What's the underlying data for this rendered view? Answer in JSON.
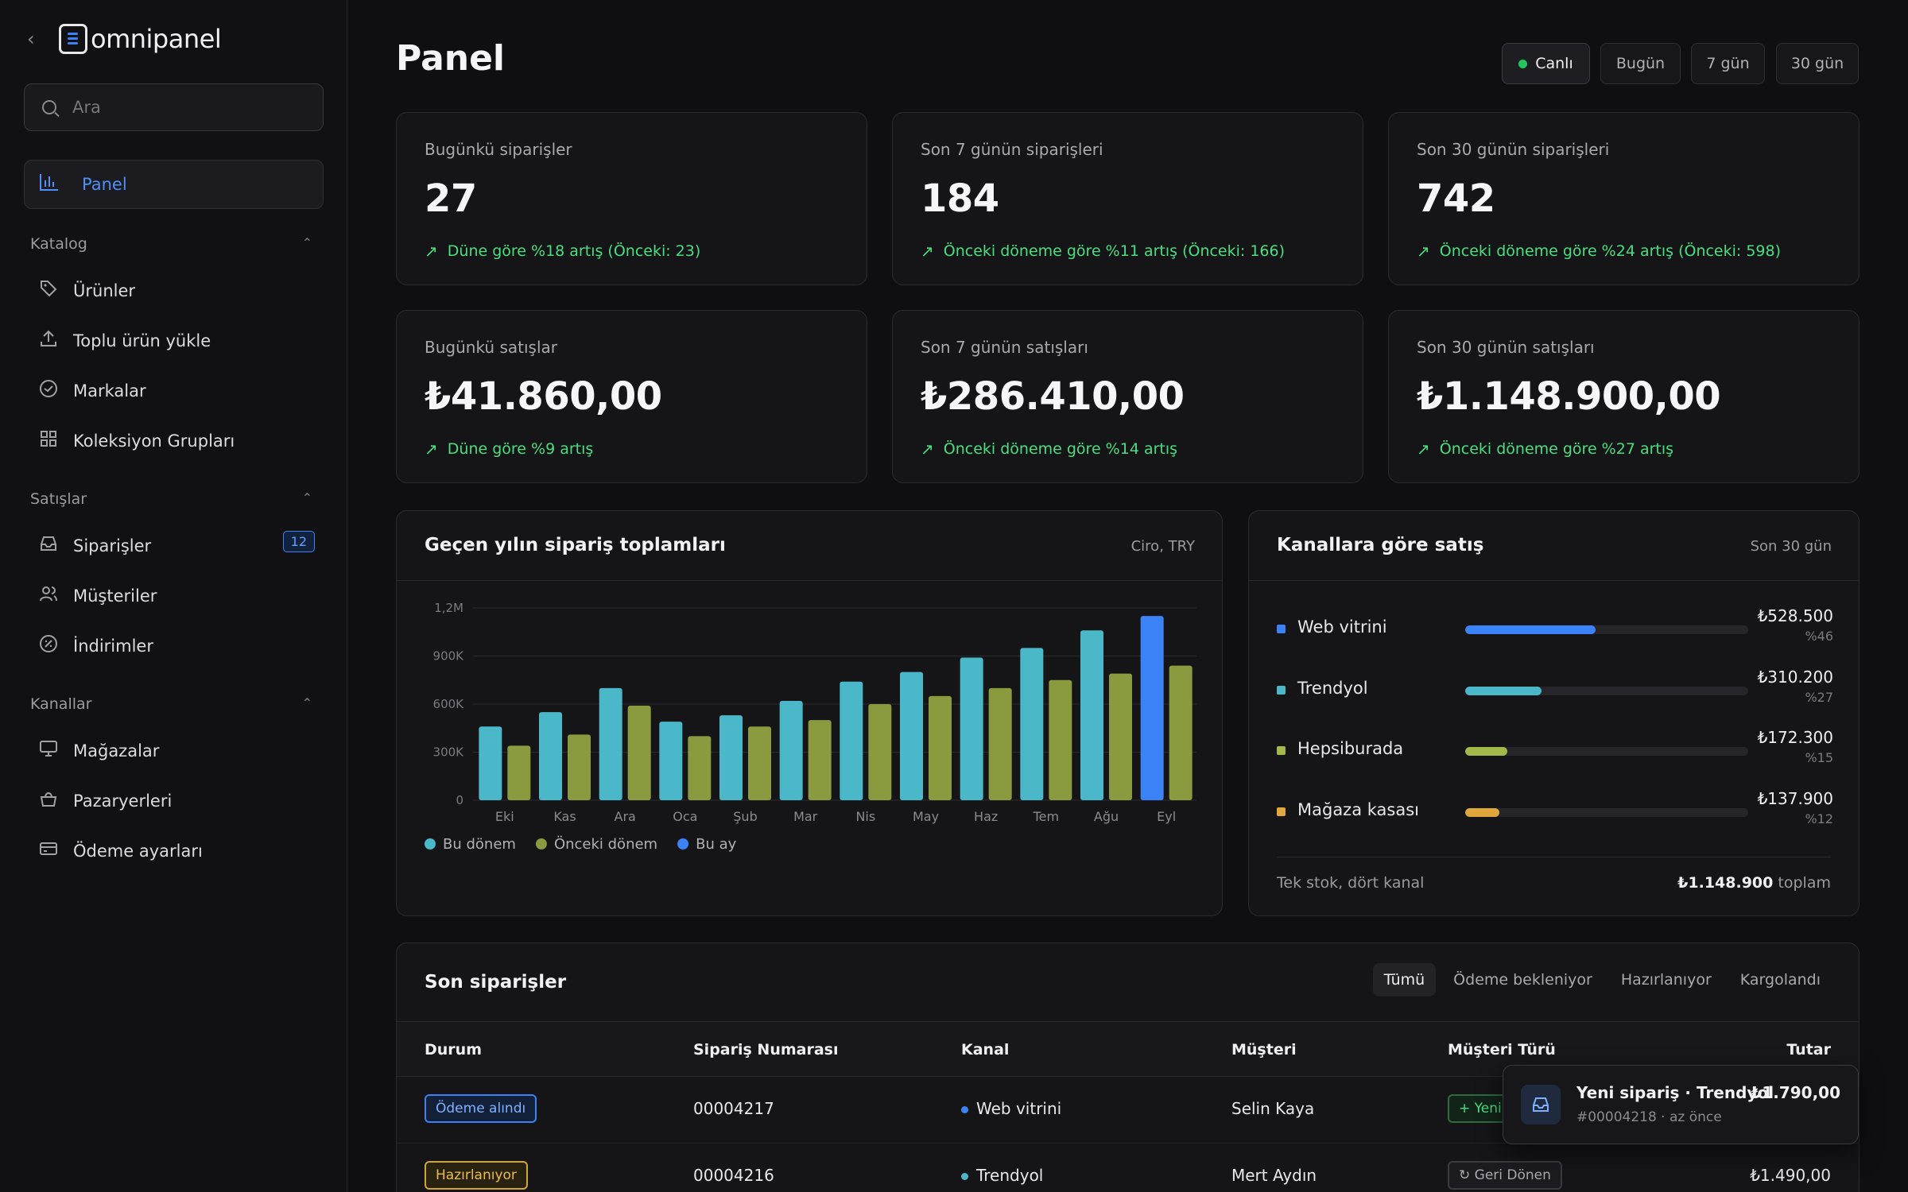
{
  "brand": {
    "name": "omnipanel"
  },
  "search": {
    "placeholder": "Ara"
  },
  "sidebar": {
    "active": {
      "label": "Panel",
      "icon": "bar-chart-icon"
    },
    "sections": [
      {
        "title": "Katalog",
        "items": [
          {
            "label": "Ürünler",
            "icon": "tag-icon"
          },
          {
            "label": "Toplu ürün yükle",
            "icon": "upload-icon"
          },
          {
            "label": "Markalar",
            "icon": "check-circle-icon"
          },
          {
            "label": "Koleksiyon Grupları",
            "icon": "grid-icon"
          }
        ]
      },
      {
        "title": "Satışlar",
        "items": [
          {
            "label": "Siparişler",
            "icon": "inbox-icon",
            "badge": "12"
          },
          {
            "label": "Müşteriler",
            "icon": "users-icon"
          },
          {
            "label": "İndirimler",
            "icon": "discount-icon"
          }
        ]
      },
      {
        "title": "Kanallar",
        "items": [
          {
            "label": "Mağazalar",
            "icon": "monitor-icon"
          },
          {
            "label": "Pazaryerleri",
            "icon": "basket-icon"
          },
          {
            "label": "Ödeme ayarları",
            "icon": "credit-card-icon"
          }
        ]
      }
    ]
  },
  "header": {
    "title": "Panel",
    "ranges": [
      "Canlı",
      "Bugün",
      "7 gün",
      "30 gün"
    ]
  },
  "kpis": [
    {
      "label": "Bugünkü siparişler",
      "value": "27",
      "delta": "Düne göre %18 artış (Önceki: 23)"
    },
    {
      "label": "Son 7 günün siparişleri",
      "value": "184",
      "delta": "Önceki döneme göre %11 artış (Önceki: 166)"
    },
    {
      "label": "Son 30 günün siparişleri",
      "value": "742",
      "delta": "Önceki döneme göre %24 artış (Önceki: 598)"
    },
    {
      "label": "Bugünkü satışlar",
      "value": "₺41.860,00",
      "delta": "Düne göre %9 artış"
    },
    {
      "label": "Son 7 günün satışları",
      "value": "₺286.410,00",
      "delta": "Önceki döneme göre %14 artış"
    },
    {
      "label": "Son 30 günün satışları",
      "value": "₺1.148.900,00",
      "delta": "Önceki döneme göre %27 artış"
    }
  ],
  "chart_panel": {
    "title": "Geçen yılın sipariş toplamları",
    "subtitle": "Ciro, TRY"
  },
  "chart_data": {
    "type": "bar",
    "categories": [
      "Eki",
      "Kas",
      "Ara",
      "Oca",
      "Şub",
      "Mar",
      "Nis",
      "May",
      "Haz",
      "Tem",
      "Ağu",
      "Eyl"
    ],
    "series": [
      {
        "name": "Bu dönem",
        "values": [
          460000,
          550000,
          700000,
          490000,
          530000,
          620000,
          740000,
          800000,
          890000,
          950000,
          1060000,
          1150000
        ],
        "color": "#4ab8c8"
      },
      {
        "name": "Önceki dönem",
        "values": [
          340000,
          410000,
          590000,
          400000,
          460000,
          500000,
          600000,
          650000,
          700000,
          750000,
          790000,
          840000
        ],
        "color": "#8a9a3e"
      }
    ],
    "highlight": {
      "name": "Bu ay",
      "index": 11,
      "color": "#3b82f6"
    },
    "yticks": [
      "0",
      "300K",
      "600K",
      "900K",
      "1,2M"
    ],
    "ylim": [
      0,
      1200000
    ],
    "grid": true,
    "legend_position": "bottom-left"
  },
  "channels": {
    "title": "Kanallara göre satış",
    "subtitle": "Son 30 gün",
    "rows": [
      {
        "name": "Web vitrini",
        "amount": "₺528.500",
        "pct": "%46",
        "share": 0.46,
        "color": "#3b82f6"
      },
      {
        "name": "Trendyol",
        "amount": "₺310.200",
        "pct": "%27",
        "share": 0.27,
        "color": "#4ab8c8"
      },
      {
        "name": "Hepsiburada",
        "amount": "₺172.300",
        "pct": "%15",
        "share": 0.15,
        "color": "#a3b84a"
      },
      {
        "name": "Mağaza kasası",
        "amount": "₺137.900",
        "pct": "%12",
        "share": 0.12,
        "color": "#e0a83c"
      }
    ],
    "footer_note": "Tek stok, dört kanal",
    "footer_total": "₺1.148.900",
    "footer_total_label": "toplam"
  },
  "orders": {
    "title": "Son siparişler",
    "tabs": [
      "Tümü",
      "Ödeme bekleniyor",
      "Hazırlanıyor",
      "Kargolandı"
    ],
    "columns": [
      "Durum",
      "Sipariş Numarası",
      "Kanal",
      "Müşteri",
      "Müşteri Türü",
      "Tutar"
    ],
    "rows": [
      {
        "status": "Ödeme alındı",
        "number": "00004217",
        "channel": "Web vitrini",
        "channel_color": "#3b82f6",
        "customer": "Selin Kaya",
        "type": "+ Yeni",
        "amount": ""
      },
      {
        "status": "Hazırlanıyor",
        "number": "00004216",
        "channel": "Trendyol",
        "channel_color": "#4ab8c8",
        "customer": "Mert Aydın",
        "type": "↻ Geri Dönen",
        "amount": "₺1.490,00"
      }
    ]
  },
  "toast": {
    "title": "Yeni sipariş · Trendyol",
    "subtitle": "#00004218 · az önce",
    "amount": "₺1.790,00"
  }
}
